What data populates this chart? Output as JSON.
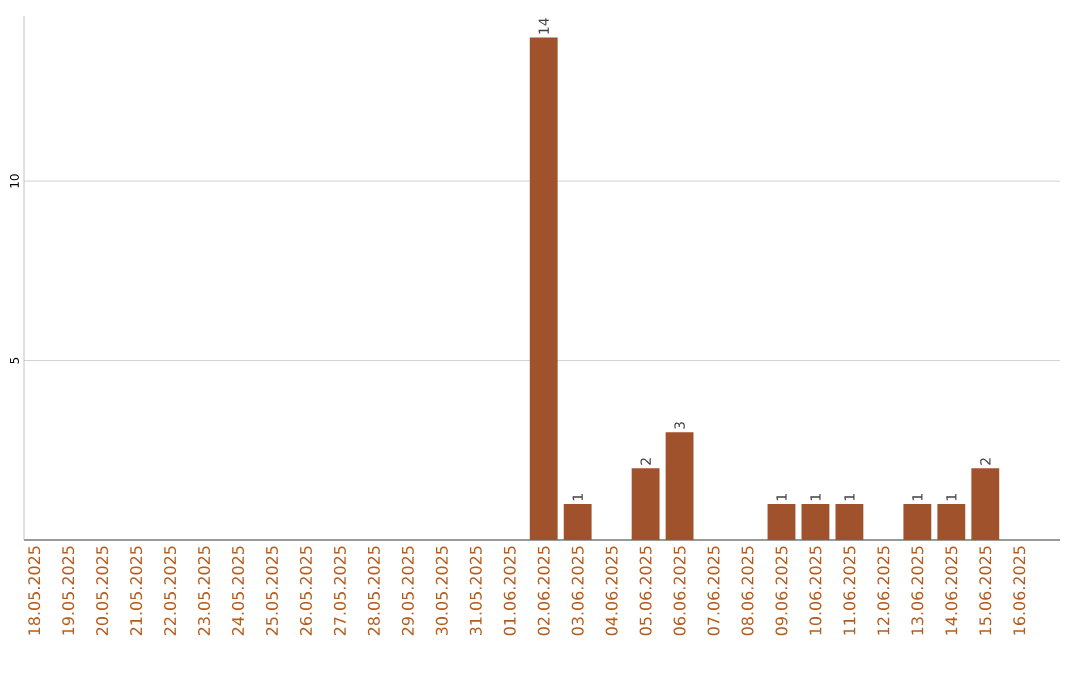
{
  "chart_data": {
    "type": "bar",
    "categories": [
      "18.05.2025",
      "19.05.2025",
      "20.05.2025",
      "21.05.2025",
      "22.05.2025",
      "23.05.2025",
      "24.05.2025",
      "25.05.2025",
      "26.05.2025",
      "27.05.2025",
      "28.05.2025",
      "29.05.2025",
      "30.05.2025",
      "31.05.2025",
      "01.06.2025",
      "02.06.2025",
      "03.06.2025",
      "04.06.2025",
      "05.06.2025",
      "06.06.2025",
      "07.06.2025",
      "08.06.2025",
      "09.06.2025",
      "10.06.2025",
      "11.06.2025",
      "12.06.2025",
      "13.06.2025",
      "14.06.2025",
      "15.06.2025",
      "16.06.2025"
    ],
    "values": [
      0,
      0,
      0,
      0,
      0,
      0,
      0,
      0,
      0,
      0,
      0,
      0,
      0,
      0,
      0,
      14,
      1,
      0,
      2,
      3,
      0,
      0,
      1,
      1,
      1,
      0,
      1,
      1,
      2,
      0
    ],
    "value_labels": [
      null,
      null,
      null,
      null,
      null,
      null,
      null,
      null,
      null,
      null,
      null,
      null,
      null,
      null,
      null,
      "14",
      "1",
      null,
      "2",
      "3",
      null,
      null,
      "1",
      "1",
      "1",
      null,
      "1",
      "1",
      "2",
      null
    ],
    "color": "#a0522d",
    "ylim": [
      0,
      14.6
    ],
    "yticks": [
      5,
      10
    ],
    "grid": "y"
  }
}
